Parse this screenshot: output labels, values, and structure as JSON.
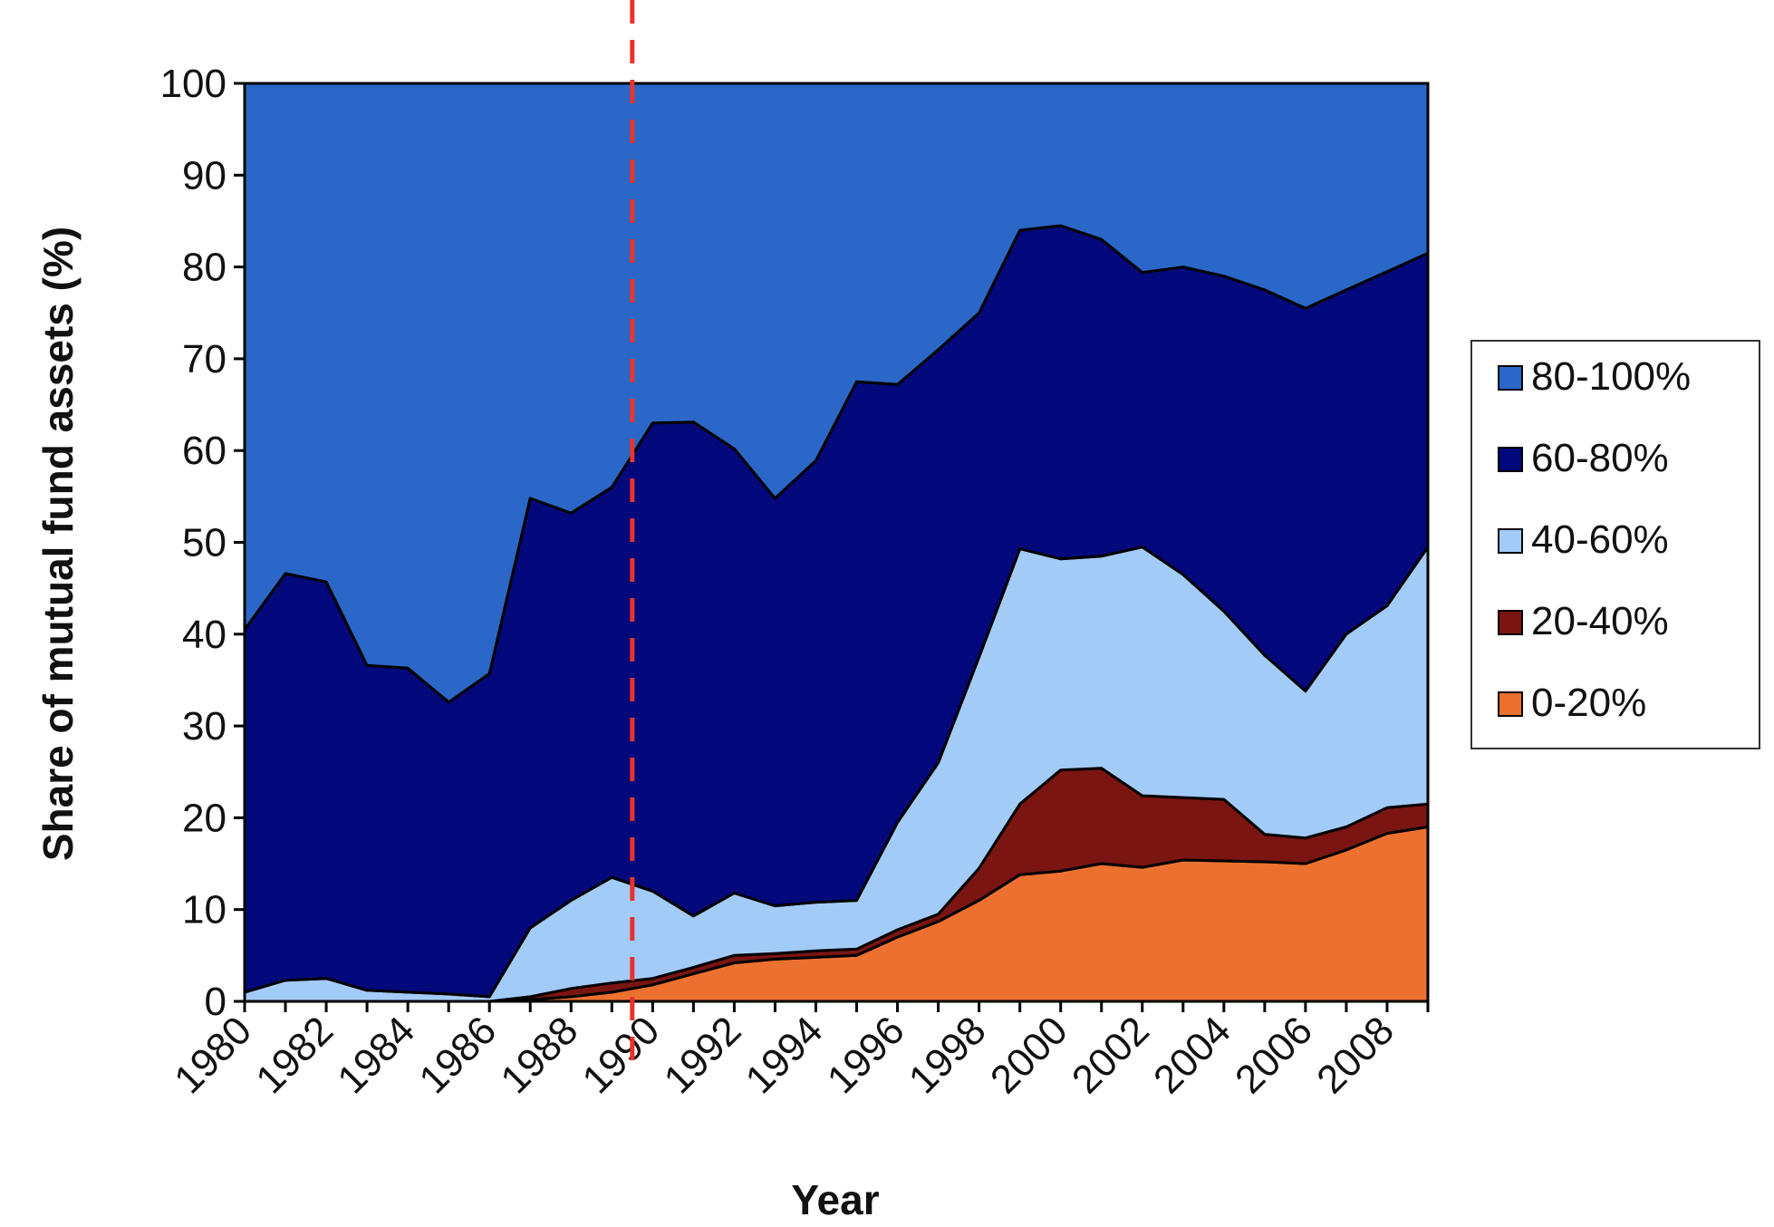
{
  "chart_data": {
    "type": "area",
    "stacked": true,
    "title": "",
    "xlabel": "Year",
    "ylabel": "Share of mutual fund assets (%)",
    "ylim": [
      0,
      100
    ],
    "yticks": [
      "0",
      "10",
      "20",
      "30",
      "40",
      "50",
      "60",
      "70",
      "80",
      "90",
      "100"
    ],
    "xlim": [
      1980,
      2009
    ],
    "xtick_labels": [
      "1980",
      "1982",
      "1984",
      "1986",
      "1988",
      "1990",
      "1992",
      "1994",
      "1996",
      "1998",
      "2000",
      "2002",
      "2004",
      "2006",
      "2008"
    ],
    "x": [
      1980,
      1981,
      1982,
      1983,
      1984,
      1985,
      1986,
      1987,
      1988,
      1989,
      1990,
      1991,
      1992,
      1993,
      1994,
      1995,
      1996,
      1997,
      1998,
      1999,
      2000,
      2001,
      2002,
      2003,
      2004,
      2005,
      2006,
      2007,
      2008,
      2009
    ],
    "series": [
      {
        "name": "0-20%",
        "color": "#EC7130",
        "values": [
          0,
          0,
          0,
          0,
          0,
          0,
          0,
          0.2,
          0.5,
          1.0,
          1.8,
          3.0,
          4.2,
          4.6,
          4.8,
          5.0,
          7.0,
          8.7,
          11.0,
          13.8,
          14.2,
          15.0,
          14.6,
          15.4,
          15.3,
          15.2,
          15.0,
          16.5,
          18.3,
          19.0
        ]
      },
      {
        "name": "20-40%",
        "color": "#7A1512",
        "values": [
          0,
          0,
          0,
          0,
          0,
          0,
          0,
          0.3,
          0.9,
          1.0,
          0.7,
          0.7,
          0.8,
          0.6,
          0.7,
          0.7,
          0.8,
          0.8,
          3.5,
          7.7,
          11.0,
          10.4,
          7.8,
          6.8,
          6.7,
          3.0,
          2.8,
          2.5,
          2.8,
          2.5
        ]
      },
      {
        "name": "40-60%",
        "color": "#A3CBF8",
        "values": [
          1.0,
          2.3,
          2.5,
          1.2,
          1.0,
          0.8,
          0.5,
          7.5,
          9.6,
          11.5,
          9.5,
          5.6,
          6.8,
          5.2,
          5.3,
          5.3,
          11.7,
          16.5,
          23.0,
          27.8,
          23.0,
          23.1,
          27.1,
          24.3,
          20.5,
          19.5,
          16.0,
          21.0,
          22.0,
          28.0
        ]
      },
      {
        "name": "60-80%",
        "color": "#03097A",
        "values": [
          39.5,
          44.3,
          43.2,
          35.4,
          35.3,
          31.8,
          35.2,
          46.8,
          42.2,
          42.5,
          51.0,
          53.8,
          48.4,
          44.4,
          48.1,
          56.5,
          47.7,
          45.0,
          37.5,
          34.7,
          36.3,
          34.5,
          29.9,
          33.5,
          36.5,
          39.8,
          41.7,
          37.5,
          36.4,
          32.0
        ]
      },
      {
        "name": "80-100%",
        "color": "#2A67C7",
        "values": [
          59.5,
          53.4,
          54.3,
          63.4,
          63.7,
          67.4,
          64.3,
          45.2,
          46.8,
          44.0,
          37.0,
          36.9,
          39.8,
          45.2,
          41.1,
          32.5,
          32.8,
          29.0,
          25.0,
          16.0,
          15.5,
          17.0,
          20.6,
          20.0,
          21.0,
          22.5,
          24.5,
          22.5,
          20.5,
          18.5
        ]
      }
    ],
    "reference_line": {
      "x": 1989.5,
      "style": "dashed",
      "color": "#E8332C"
    },
    "legend_position": "right",
    "legend_order": [
      "80-100%",
      "60-80%",
      "40-60%",
      "20-40%",
      "0-20%"
    ],
    "grid": false
  }
}
